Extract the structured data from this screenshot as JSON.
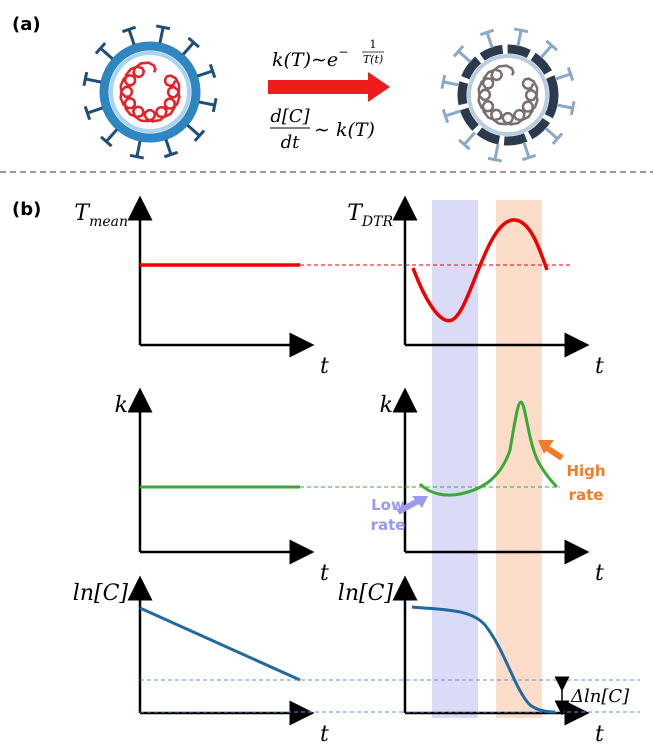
{
  "panel_a": {
    "label": "(a)",
    "rate_eq": {
      "lhs": "k(T)∼e",
      "exp_sign": "−",
      "exp_num": "1",
      "exp_den": "T(t)"
    },
    "conc_eq": {
      "num": "d[C]",
      "den": "dt",
      "rhs": "∼ k(T)"
    }
  },
  "panel_b": {
    "label": "(b)",
    "plots": [
      {
        "y_label": {
          "base": "T",
          "sub": "mean"
        },
        "x_label": "t"
      },
      {
        "y_label": {
          "base": "T",
          "sub": "DTR"
        },
        "x_label": "t"
      },
      {
        "y_label": {
          "base": "k"
        },
        "x_label": "t"
      },
      {
        "y_label": {
          "base": "k"
        },
        "x_label": "t",
        "annotations": [
          [
            "Low",
            "rate"
          ],
          [
            "High",
            "rate"
          ]
        ]
      },
      {
        "y_label": {
          "base": "ln[C]"
        },
        "x_label": "t"
      },
      {
        "y_label": {
          "base": "ln[C]"
        },
        "x_label": "t",
        "delta_label": "Δln[C]"
      }
    ]
  }
}
